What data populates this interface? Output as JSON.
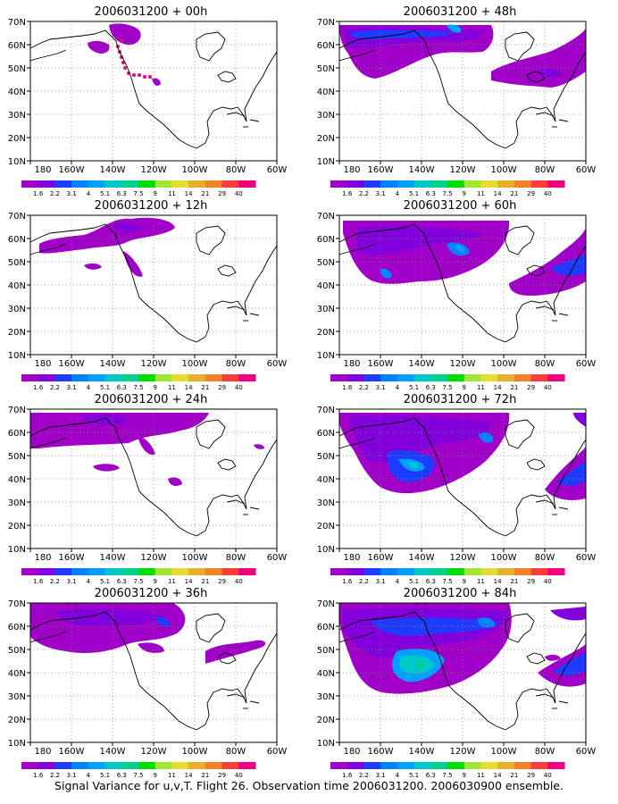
{
  "footer": "Signal Variance for u,v,T. Flight 26. Observation time 2006031200. 2006030900 ensemble.",
  "x_ticks": [
    "180",
    "160W",
    "140W",
    "120W",
    "100W",
    "80W",
    "60W"
  ],
  "y_ticks": [
    "70N",
    "60N",
    "50N",
    "40N",
    "30N",
    "20N",
    "10N"
  ],
  "colorbar": {
    "labels": [
      "1.6",
      "2.2",
      "3.1",
      "4",
      "5.1",
      "6.3",
      "7.5",
      "9",
      "11",
      "14",
      "21",
      "29",
      "40"
    ],
    "colors": [
      "#a000c8",
      "#8200dc",
      "#1e3cff",
      "#0082ff",
      "#00a0ff",
      "#00c8c8",
      "#00d28c",
      "#00dc00",
      "#a0e632",
      "#e6dc32",
      "#e6af2d",
      "#f08228",
      "#fa3c3c",
      "#f00082"
    ]
  },
  "panels": [
    {
      "title": "2006031200 + 00h",
      "col": 0,
      "row": 0
    },
    {
      "title": "2006031200 + 12h",
      "col": 0,
      "row": 1
    },
    {
      "title": "2006031200 + 24h",
      "col": 0,
      "row": 2
    },
    {
      "title": "2006031200 + 36h",
      "col": 0,
      "row": 3
    },
    {
      "title": "2006031200 + 48h",
      "col": 1,
      "row": 0
    },
    {
      "title": "2006031200 + 60h",
      "col": 1,
      "row": 1
    },
    {
      "title": "2006031200 + 72h",
      "col": 1,
      "row": 2
    },
    {
      "title": "2006031200 + 84h",
      "col": 1,
      "row": 3
    }
  ]
}
